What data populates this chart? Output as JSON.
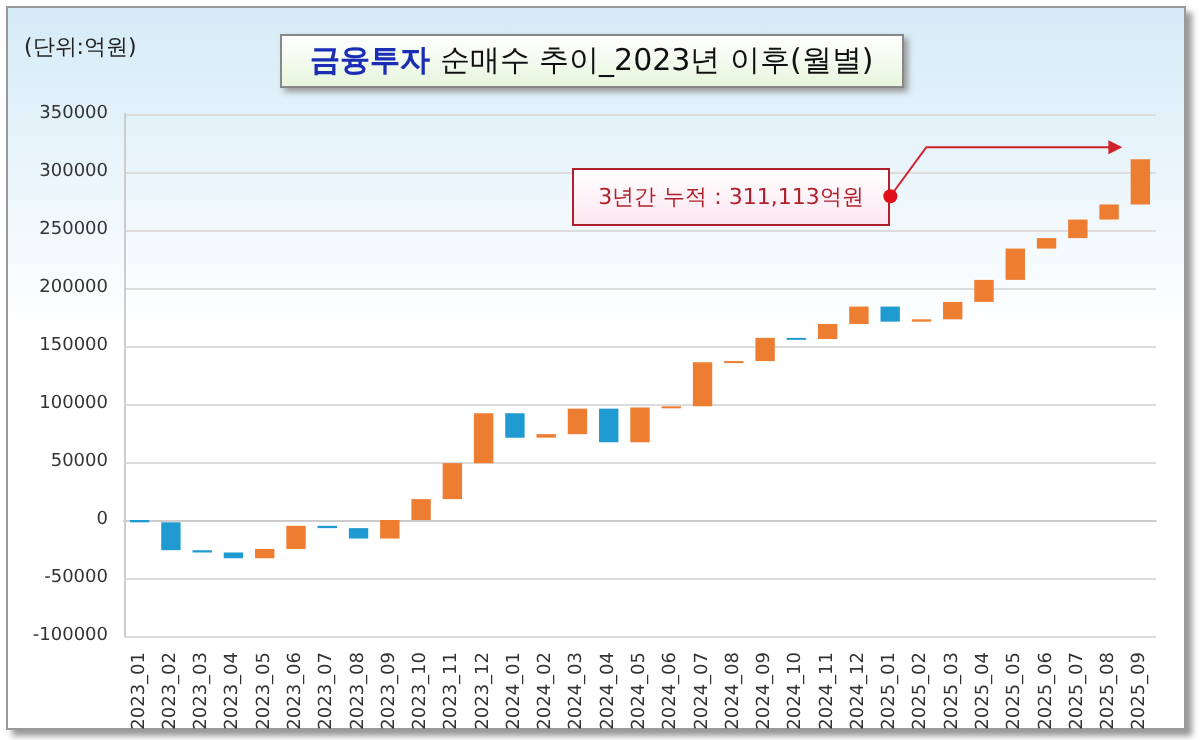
{
  "chart_data": {
    "type": "bar",
    "title": "금융투자 순매수 추이_2023년 이후(월별)",
    "categories": [
      "2023_01",
      "2023_02",
      "2023_03",
      "2023_04",
      "2023_05",
      "2023_06",
      "2023_07",
      "2023_08",
      "2023_09",
      "2023_10",
      "2023_11",
      "2023_12",
      "2024_01",
      "2024_02",
      "2024_03",
      "2024_04",
      "2024_05",
      "2024_06",
      "2024_07",
      "2024_08",
      "2024_09",
      "2024_10",
      "2024_11",
      "2024_12",
      "2025_01",
      "2025_02",
      "2025_03",
      "2025_04",
      "2025_05",
      "2025_06",
      "2025_07",
      "2025_08",
      "2025_09"
    ],
    "values": [
      -2000,
      -24000,
      -2000,
      -5000,
      8000,
      20000,
      -2000,
      -9000,
      16000,
      18000,
      31000,
      43000,
      -21000,
      3000,
      22000,
      -29000,
      30000,
      1000,
      38000,
      1000,
      20000,
      -1000,
      13000,
      15000,
      -13000,
      2000,
      15000,
      19000,
      27000,
      9000,
      16000,
      13000,
      39000
    ],
    "base": [
      0,
      -2000,
      -26000,
      -28000,
      -33000,
      -25000,
      -5000,
      -7000,
      -16000,
      0,
      18000,
      49000,
      92000,
      71000,
      74000,
      96000,
      67000,
      97000,
      98000,
      136000,
      137000,
      157000,
      156000,
      169000,
      184000,
      171000,
      173000,
      188000,
      207000,
      234000,
      243000,
      259000,
      272000
    ],
    "colors": [
      "#1f9bd1",
      "#1f9bd1",
      "#1f9bd1",
      "#1f9bd1",
      "#ed7d31",
      "#ed7d31",
      "#1f9bd1",
      "#1f9bd1",
      "#ed7d31",
      "#ed7d31",
      "#ed7d31",
      "#ed7d31",
      "#1f9bd1",
      "#ed7d31",
      "#ed7d31",
      "#1f9bd1",
      "#ed7d31",
      "#ed7d31",
      "#ed7d31",
      "#ed7d31",
      "#ed7d31",
      "#1f9bd1",
      "#ed7d31",
      "#ed7d31",
      "#1f9bd1",
      "#ed7d31",
      "#ed7d31",
      "#ed7d31",
      "#ed7d31",
      "#ed7d31",
      "#ed7d31",
      "#ed7d31",
      "#ed7d31"
    ],
    "ylim": [
      -100000,
      350000
    ],
    "yticks": [
      -100000,
      -50000,
      0,
      50000,
      100000,
      150000,
      200000,
      250000,
      300000,
      350000
    ],
    "grid": "y",
    "annotations": [
      "(단위:억원)",
      "3년간 누적 : 311,113억원"
    ]
  }
}
